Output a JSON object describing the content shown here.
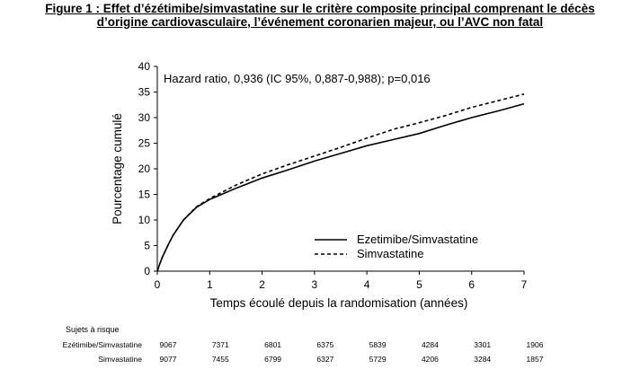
{
  "figure": {
    "title_line1": "Figure 1 : Effet d’ézétimibe/simvastatine sur le critère composite principal comprenant le décès",
    "title_line2": "d’origine cardiovasculaire, l’événement coronarien majeur, ou l’AVC non fatal"
  },
  "chart_data": {
    "type": "line",
    "title": "",
    "xlabel": "Temps écoulé depuis la randomisation (années)",
    "ylabel": "Pourcentage cumulé",
    "xlim": [
      0,
      7
    ],
    "ylim": [
      0,
      40
    ],
    "xticks": [
      0,
      1,
      2,
      3,
      4,
      5,
      6,
      7
    ],
    "yticks": [
      0,
      5,
      10,
      15,
      20,
      25,
      30,
      35,
      40
    ],
    "grid": false,
    "legend_position": "lower-right",
    "annotation": "Hazard ratio, 0,936 (IC 95%, 0,887-0,988); p=0,016",
    "series": [
      {
        "name": "Ezetimibe/Simvastatine",
        "style": "solid",
        "x": [
          0,
          0.05,
          0.1,
          0.2,
          0.3,
          0.5,
          0.75,
          1,
          1.5,
          2,
          2.5,
          3,
          3.5,
          4,
          4.5,
          5,
          5.5,
          6,
          6.5,
          7
        ],
        "y": [
          0,
          1.5,
          2.8,
          5,
          7,
          10,
          12.5,
          14,
          16.2,
          18.2,
          19.8,
          21.5,
          23,
          24.5,
          25.7,
          26.9,
          28.5,
          30,
          31.3,
          32.7
        ]
      },
      {
        "name": "Simvastatine",
        "style": "dashed",
        "x": [
          0,
          0.05,
          0.1,
          0.2,
          0.3,
          0.5,
          0.75,
          1,
          1.5,
          2,
          2.5,
          3,
          3.5,
          4,
          4.5,
          5,
          5.5,
          6,
          6.5,
          7
        ],
        "y": [
          0,
          1.5,
          2.8,
          5,
          7,
          10,
          12.6,
          14.2,
          16.8,
          19,
          20.8,
          22.5,
          24.2,
          26,
          27.7,
          29,
          30.4,
          32,
          33.3,
          34.6
        ]
      }
    ],
    "at_risk": {
      "label": "Sujets à risque",
      "rows": [
        {
          "name": "Ezétimibe/Simvastatine",
          "values": [
            9067,
            7371,
            6801,
            6375,
            5839,
            4284,
            3301,
            1906
          ]
        },
        {
          "name": "Simvastatine",
          "values": [
            9077,
            7455,
            6799,
            6327,
            5729,
            4206,
            3284,
            1857
          ]
        }
      ]
    }
  }
}
